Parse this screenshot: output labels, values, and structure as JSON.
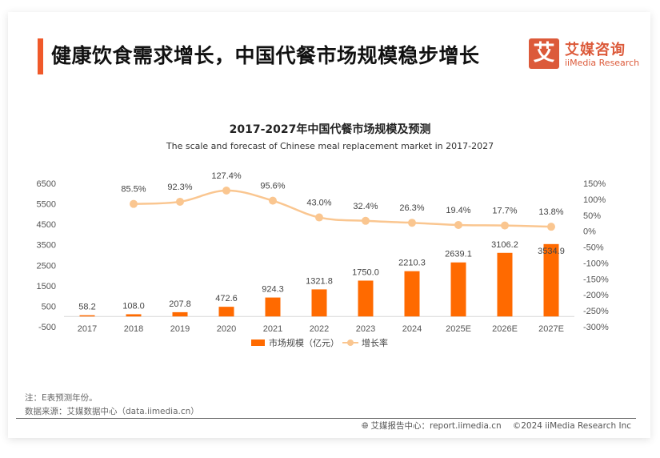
{
  "header": {
    "title": "健康饮食需求增长，中国代餐市场规模稳步增长",
    "logo": {
      "icon_char": "艾",
      "name_cn": "艾媒咨询",
      "name_en": "iiMedia Research",
      "color": "#dc5a3a"
    }
  },
  "chart_data": {
    "type": "bar+line",
    "title": "2017-2027年中国代餐市场规模及预测",
    "subtitle": "The scale and forecast of Chinese meal replacement market in 2017-2027",
    "categories": [
      "2017",
      "2018",
      "2019",
      "2020",
      "2021",
      "2022",
      "2023",
      "2024",
      "2025E",
      "2026E",
      "2027E"
    ],
    "series": [
      {
        "name": "市场规模（亿元）",
        "type": "bar",
        "axis": "left",
        "color": "#ff6a00",
        "values": [
          58.2,
          108.0,
          207.8,
          472.6,
          924.3,
          1321.8,
          1750.0,
          2210.3,
          2639.1,
          3106.2,
          3534.9
        ],
        "labels": [
          "58.2",
          "108.0",
          "207.8",
          "472.6",
          "924.3",
          "1321.8",
          "1750.0",
          "2210.3",
          "2639.1",
          "3106.2",
          "3534.9"
        ]
      },
      {
        "name": "增长率",
        "type": "line",
        "axis": "right",
        "color": "#fac690",
        "values": [
          null,
          85.5,
          92.3,
          127.4,
          95.6,
          43.0,
          32.4,
          26.3,
          19.4,
          17.7,
          13.8
        ],
        "labels": [
          "",
          "85.5%",
          "92.3%",
          "127.4%",
          "95.6%",
          "43.0%",
          "32.4%",
          "26.3%",
          "19.4%",
          "17.7%",
          "13.8%"
        ]
      }
    ],
    "y_left": {
      "range": [
        -500,
        6500
      ],
      "ticks": [
        -500,
        500,
        1500,
        2500,
        3500,
        4500,
        5500,
        6500
      ],
      "tick_labels": [
        "-500",
        "500",
        "1500",
        "2500",
        "3500",
        "4500",
        "5500",
        "6500"
      ]
    },
    "y_right": {
      "range": [
        -300,
        150
      ],
      "ticks": [
        -300,
        -250,
        -200,
        -150,
        -100,
        -50,
        0,
        50,
        100,
        150
      ],
      "tick_labels": [
        "-300%",
        "-250%",
        "-200%",
        "-150%",
        "-100%",
        "-50%",
        "0%",
        "50%",
        "100%",
        "150%"
      ]
    },
    "grid": false,
    "legend": {
      "position": "bottom",
      "items": [
        "市场规模（亿元）",
        "增长率"
      ]
    }
  },
  "notes": {
    "note": "注：E表预测年份。",
    "source": "数据来源：艾媒数据中心（data.iimedia.cn）"
  },
  "footer": {
    "report_center": "艾媒报告中心：report.iimedia.cn",
    "copyright": "©2024  iiMedia Research  Inc"
  }
}
